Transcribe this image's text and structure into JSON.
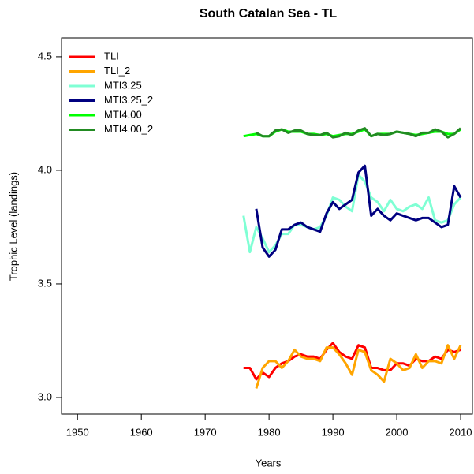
{
  "chart_data": {
    "type": "line",
    "title": "South Catalan Sea - TL",
    "x_label": "Years",
    "y_label": "Trophic Level (landings)",
    "x": [
      1976,
      1977,
      1978,
      1979,
      1980,
      1981,
      1982,
      1983,
      1984,
      1985,
      1986,
      1987,
      1988,
      1989,
      1990,
      1991,
      1992,
      1993,
      1994,
      1995,
      1996,
      1997,
      1998,
      1999,
      2000,
      2001,
      2002,
      2003,
      2004,
      2005,
      2006,
      2007,
      2008,
      2009,
      2010
    ],
    "series": [
      {
        "name": "TLI",
        "color": "#ff0000",
        "values": [
          3.13,
          3.13,
          3.08,
          3.11,
          3.09,
          3.13,
          3.15,
          3.16,
          3.18,
          3.19,
          3.18,
          3.18,
          3.17,
          3.21,
          3.24,
          3.2,
          3.18,
          3.17,
          3.23,
          3.22,
          3.13,
          3.13,
          3.12,
          3.12,
          3.15,
          3.15,
          3.14,
          3.17,
          3.16,
          3.16,
          3.18,
          3.17,
          3.21,
          3.2,
          3.21
        ]
      },
      {
        "name": "TLI_2",
        "color": "#ffa500",
        "values": [
          null,
          null,
          3.04,
          3.13,
          3.16,
          3.16,
          3.13,
          3.16,
          3.21,
          3.18,
          3.17,
          3.17,
          3.16,
          3.22,
          3.22,
          3.19,
          3.15,
          3.1,
          3.21,
          3.2,
          3.12,
          3.1,
          3.07,
          3.17,
          3.15,
          3.12,
          3.13,
          3.19,
          3.13,
          3.16,
          3.16,
          3.15,
          3.23,
          3.17,
          3.23
        ]
      },
      {
        "name": "MTI3.25",
        "color": "#7fffd4",
        "values": [
          3.8,
          3.64,
          3.75,
          3.7,
          3.64,
          3.67,
          3.72,
          3.72,
          3.76,
          3.76,
          3.75,
          3.74,
          3.75,
          3.8,
          3.88,
          3.87,
          3.84,
          3.82,
          3.98,
          3.95,
          3.88,
          3.86,
          3.82,
          3.87,
          3.83,
          3.82,
          3.84,
          3.85,
          3.83,
          3.88,
          3.78,
          3.77,
          3.78,
          3.85,
          3.88
        ]
      },
      {
        "name": "MTI3.25_2",
        "color": "#000080",
        "values": [
          null,
          null,
          3.83,
          3.66,
          3.62,
          3.65,
          3.74,
          3.74,
          3.76,
          3.77,
          3.75,
          3.74,
          3.73,
          3.81,
          3.86,
          3.83,
          3.85,
          3.87,
          3.99,
          4.02,
          3.8,
          3.83,
          3.8,
          3.78,
          3.81,
          3.8,
          3.79,
          3.78,
          3.79,
          3.79,
          3.77,
          3.75,
          3.76,
          3.93,
          3.88
        ]
      },
      {
        "name": "MTI4.00",
        "color": "#00ff00",
        "values": [
          4.15,
          4.155,
          4.16,
          4.15,
          4.15,
          4.17,
          4.18,
          4.17,
          4.17,
          4.17,
          4.16,
          4.16,
          4.155,
          4.16,
          4.15,
          4.155,
          4.16,
          4.16,
          4.17,
          4.18,
          4.15,
          4.16,
          4.16,
          4.16,
          4.17,
          4.165,
          4.16,
          4.155,
          4.16,
          4.165,
          4.17,
          4.17,
          4.16,
          4.16,
          4.18
        ]
      },
      {
        "name": "MTI4.00_2",
        "color": "#228b22",
        "values": [
          null,
          null,
          4.165,
          4.15,
          4.15,
          4.175,
          4.18,
          4.165,
          4.175,
          4.175,
          4.16,
          4.155,
          4.155,
          4.165,
          4.145,
          4.15,
          4.165,
          4.155,
          4.175,
          4.185,
          4.15,
          4.16,
          4.155,
          4.16,
          4.17,
          4.165,
          4.16,
          4.15,
          4.165,
          4.165,
          4.18,
          4.17,
          4.145,
          4.16,
          4.185
        ]
      }
    ],
    "xlim": [
      1947.5,
      2011.85
    ],
    "ylim": [
      2.927,
      4.583
    ],
    "xticks": [
      1950,
      1960,
      1970,
      1980,
      1990,
      2000,
      2010
    ],
    "yticks": [
      {
        "value": 3,
        "label": "3.0"
      },
      {
        "value": 3.5,
        "label": "3.5"
      },
      {
        "value": 4,
        "label": "4.0"
      },
      {
        "value": 4.5,
        "label": "4.5"
      }
    ],
    "legend": "top-left"
  }
}
